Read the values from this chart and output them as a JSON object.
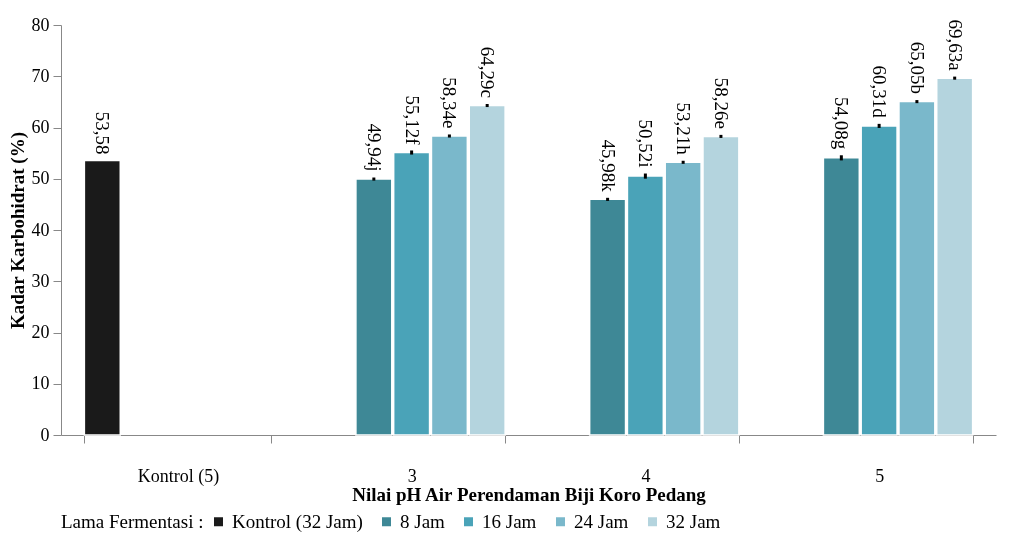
{
  "chart_data": {
    "type": "bar",
    "xlabel": "Nilai pH Air Perendaman Biji Koro Pedang",
    "ylabel": "Kadar Karbohidrat (%)",
    "legend_title": "Lama Fermentasi :",
    "categories": [
      "Kontrol (5)",
      "3",
      "4",
      "5"
    ],
    "ylim": [
      0,
      80
    ],
    "yticks": [
      0,
      10,
      20,
      30,
      40,
      50,
      60,
      70,
      80
    ],
    "grid": false,
    "legend": "bottom",
    "series": [
      {
        "name": "Kontrol (32 Jam)",
        "color": "#1a1a1a",
        "values": [
          53.58,
          null,
          null,
          null
        ],
        "value_labels": [
          "53,58",
          null,
          null,
          null
        ]
      },
      {
        "name": "8 Jam",
        "color": "#3e8896",
        "values": [
          null,
          49.94,
          45.98,
          54.08
        ],
        "errors": [
          null,
          0.3,
          0.3,
          0.5
        ],
        "value_labels": [
          null,
          "49,94j",
          "45,98k",
          "54,08g"
        ]
      },
      {
        "name": "16 Jam",
        "color": "#4aa3b8",
        "values": [
          null,
          55.12,
          50.52,
          60.31
        ],
        "errors": [
          null,
          0.4,
          0.5,
          0.4
        ],
        "value_labels": [
          null,
          "55,12f",
          "50,52i",
          "60,31d"
        ]
      },
      {
        "name": "24 Jam",
        "color": "#7ab8cb",
        "values": [
          null,
          58.34,
          53.21,
          65.05
        ],
        "errors": [
          null,
          0.3,
          0.3,
          0.3
        ],
        "value_labels": [
          null,
          "58,34e",
          "53,21h",
          "65,05b"
        ]
      },
      {
        "name": "32 Jam",
        "color": "#b4d4de",
        "values": [
          null,
          64.29,
          58.26,
          69.63
        ],
        "errors": [
          null,
          0.3,
          0.3,
          0.3
        ],
        "value_labels": [
          null,
          "64,29c",
          "58,26e",
          "69,63a"
        ]
      }
    ]
  }
}
